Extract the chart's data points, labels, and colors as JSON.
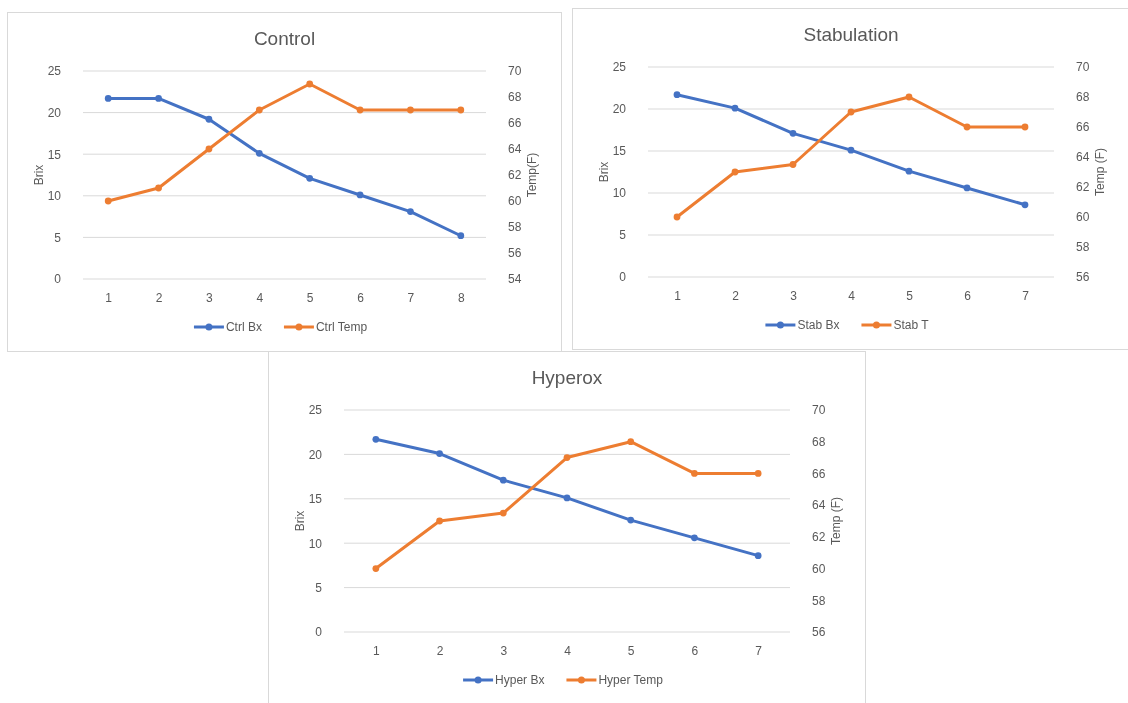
{
  "chart_data": [
    {
      "type": "line",
      "title": "Control",
      "ylabel": "Brix",
      "y2label": "Temp(F)",
      "categories": [
        "1",
        "2",
        "3",
        "4",
        "5",
        "6",
        "7",
        "8"
      ],
      "ylim": [
        0,
        25
      ],
      "yticks": [
        0,
        5,
        10,
        15,
        20,
        25
      ],
      "y2lim": [
        54,
        70
      ],
      "y2ticks": [
        54,
        56,
        58,
        60,
        62,
        64,
        66,
        68,
        70
      ],
      "grid": "y",
      "legend": "bottom",
      "marker": "circle",
      "series": [
        {
          "name": "Ctrl Bx",
          "color": "#4472c4",
          "values": [
            21.7,
            21.7,
            19.2,
            15.1,
            12.1,
            10.1,
            8.1,
            5.2
          ]
        },
        {
          "name": "Ctrl Temp",
          "color": "#ed7d31",
          "axis": "y2",
          "values": [
            60,
            61,
            64,
            67,
            69,
            67,
            67,
            67
          ]
        }
      ]
    },
    {
      "type": "line",
      "title": "Stabulation",
      "ylabel": "Brix",
      "y2label": "Temp (F)",
      "categories": [
        "1",
        "2",
        "3",
        "4",
        "5",
        "6",
        "7"
      ],
      "ylim": [
        0,
        25
      ],
      "yticks": [
        0,
        5,
        10,
        15,
        20,
        25
      ],
      "y2lim": [
        56,
        70
      ],
      "y2ticks": [
        56,
        58,
        60,
        62,
        64,
        66,
        68,
        70
      ],
      "grid": "y",
      "legend": "bottom",
      "marker": "circle",
      "series": [
        {
          "name": "Stab Bx",
          "color": "#4472c4",
          "values": [
            21.7,
            20.1,
            17.1,
            15.1,
            12.6,
            10.6,
            8.6
          ]
        },
        {
          "name": "Stab T",
          "color": "#ed7d31",
          "axis": "y2",
          "values": [
            60,
            63,
            63.5,
            67,
            68,
            66,
            66
          ]
        }
      ]
    },
    {
      "type": "line",
      "title": "Hyperox",
      "ylabel": "Brix",
      "y2label": "Temp (F)",
      "categories": [
        "1",
        "2",
        "3",
        "4",
        "5",
        "6",
        "7"
      ],
      "ylim": [
        0,
        25
      ],
      "yticks": [
        0,
        5,
        10,
        15,
        20,
        25
      ],
      "y2lim": [
        56,
        70
      ],
      "y2ticks": [
        56,
        58,
        60,
        62,
        64,
        66,
        68,
        70
      ],
      "grid": "y",
      "legend": "bottom",
      "marker": "circle",
      "series": [
        {
          "name": "Hyper Bx",
          "color": "#4472c4",
          "values": [
            21.7,
            20.1,
            17.1,
            15.1,
            12.6,
            10.6,
            8.6
          ]
        },
        {
          "name": "Hyper Temp",
          "color": "#ed7d31",
          "axis": "y2",
          "values": [
            60,
            63,
            63.5,
            67,
            68,
            66,
            66
          ]
        }
      ]
    }
  ]
}
